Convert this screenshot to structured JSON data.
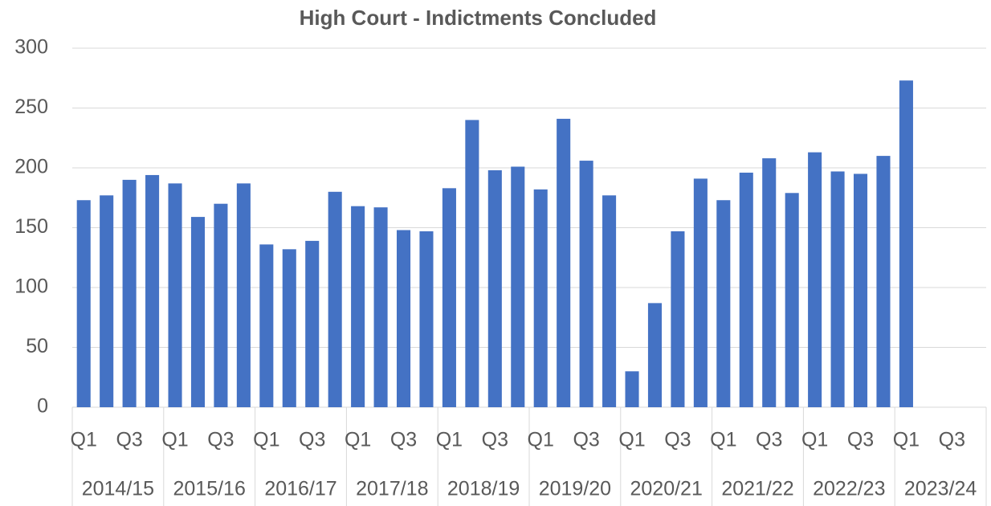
{
  "chart_data": {
    "type": "bar",
    "title": "High Court - Indictments Concluded",
    "categories": [
      "Q1",
      null,
      "Q3",
      null,
      "Q1",
      null,
      "Q3",
      null,
      "Q1",
      null,
      "Q3",
      null,
      "Q1",
      null,
      "Q3",
      null,
      "Q1",
      null,
      "Q3",
      null,
      "Q1",
      null,
      "Q3",
      null,
      "Q1",
      null,
      "Q3",
      null,
      "Q1",
      null,
      "Q3",
      null,
      "Q1",
      null,
      "Q3",
      null,
      "Q1",
      null,
      "Q3",
      null
    ],
    "groups": [
      "2014/15",
      "2015/16",
      "2016/17",
      "2017/18",
      "2018/19",
      "2019/20",
      "2020/21",
      "2021/22",
      "2022/23",
      "2023/24"
    ],
    "values": [
      173,
      177,
      190,
      194,
      187,
      159,
      170,
      187,
      136,
      132,
      139,
      180,
      168,
      167,
      148,
      147,
      183,
      240,
      198,
      201,
      182,
      241,
      206,
      177,
      30,
      87,
      147,
      191,
      173,
      196,
      208,
      179,
      213,
      197,
      195,
      210,
      273,
      null,
      null,
      null
    ],
    "color": "#4472c4",
    "ylim": [
      0,
      300
    ],
    "yticks": [
      0,
      50,
      100,
      150,
      200,
      250,
      300
    ],
    "grid": true
  }
}
